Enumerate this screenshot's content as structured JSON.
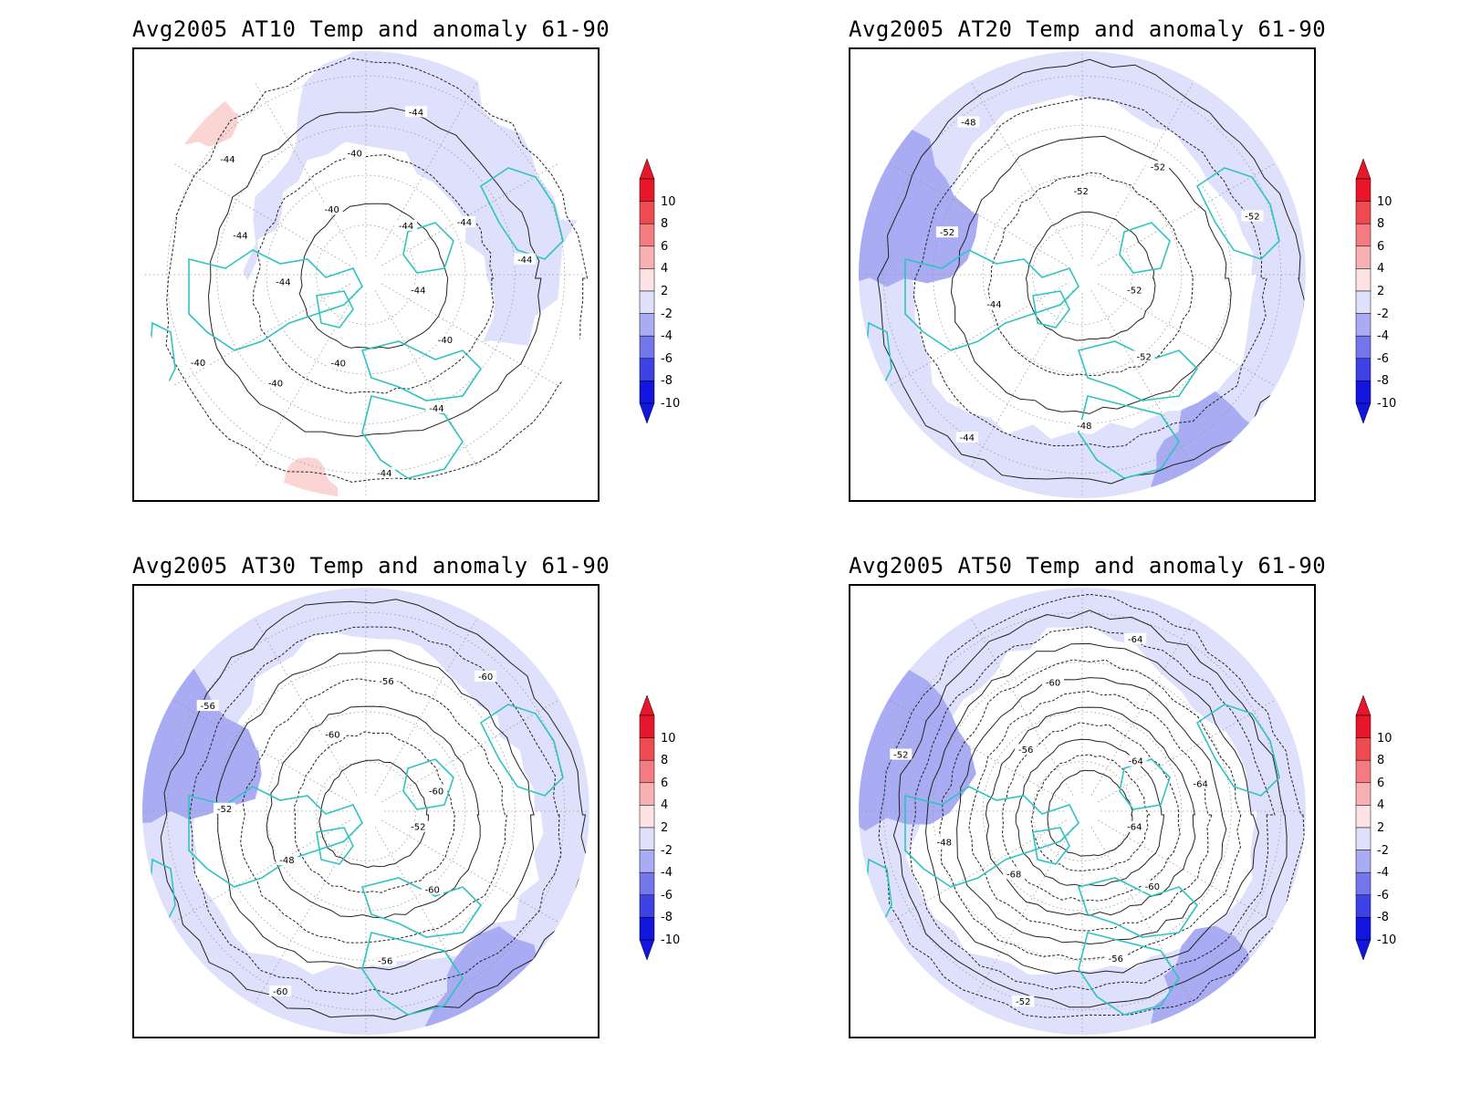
{
  "panels": [
    {
      "title": "Avg2005 AT10 Temp and anomaly 61-90",
      "contour_labels": [
        "-44",
        "-40",
        "-44",
        "-44",
        "-40",
        "-40",
        "-40",
        "-44",
        "-44",
        "-44",
        "-40",
        "-40",
        "-44",
        "-44",
        "-44",
        "-44"
      ],
      "fill_level": "light",
      "rings": 4
    },
    {
      "title": "Avg2005 AT20 Temp and anomaly 61-90",
      "contour_labels": [
        "-52",
        "-52",
        "-48",
        "-44",
        "-44",
        "-52",
        "-48",
        "-52",
        "-52",
        "-52"
      ],
      "fill_level": "medium",
      "rings": 5
    },
    {
      "title": "Avg2005 AT30 Temp and anomaly 61-90",
      "contour_labels": [
        "-52",
        "-60",
        "-56",
        "-60",
        "-48",
        "-52",
        "-56",
        "-60",
        "-56",
        "-60",
        "-60"
      ],
      "fill_level": "medium",
      "rings": 7
    },
    {
      "title": "Avg2005 AT50 Temp and anomaly 61-90",
      "contour_labels": [
        "-64",
        "-60",
        "-56",
        "-52",
        "-68",
        "-48",
        "-52",
        "-56",
        "-60",
        "-64",
        "-64",
        "-64"
      ],
      "fill_level": "medium",
      "rings": 12
    }
  ],
  "colorbar": {
    "labels": [
      "10",
      "8",
      "6",
      "4",
      "2",
      "-2",
      "-4",
      "-6",
      "-8",
      "-10"
    ],
    "colors": [
      "#e8162a",
      "#ef4a52",
      "#f47c80",
      "#f9b0b2",
      "#fde3e3",
      "#ffffff",
      "#dfe0fb",
      "#a9abf3",
      "#7477ec",
      "#3e41e4",
      "#1115de"
    ]
  },
  "colors": {
    "coastline": "#2ec4c0",
    "anomaly_light": "#dfe0fb",
    "anomaly_mid": "#a9abf3",
    "anomaly_warm": "#fbd4d4"
  }
}
